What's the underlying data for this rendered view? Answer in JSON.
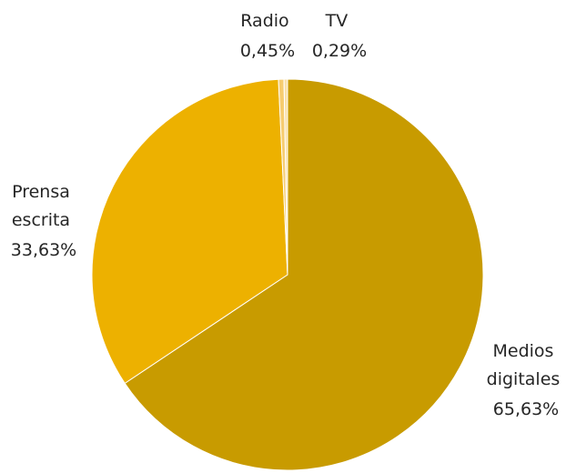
{
  "chart_data": {
    "type": "pie",
    "title": "",
    "start_angle_deg": 0,
    "direction": "clockwise",
    "slices": [
      {
        "label_lines": [
          "Medios",
          "digitales"
        ],
        "value_label": "65,63%",
        "value": 65.63,
        "color": "#C89B00"
      },
      {
        "label_lines": [
          "Prensa",
          "escrita"
        ],
        "value_label": "33,63%",
        "value": 33.63,
        "color": "#EDB100"
      },
      {
        "label_lines": [
          "Radio"
        ],
        "value_label": "0,45%",
        "value": 0.45,
        "color": "#F6CC70"
      },
      {
        "label_lines": [
          "TV"
        ],
        "value_label": "0,29%",
        "value": 0.29,
        "color": "#FAE0A8"
      }
    ]
  }
}
